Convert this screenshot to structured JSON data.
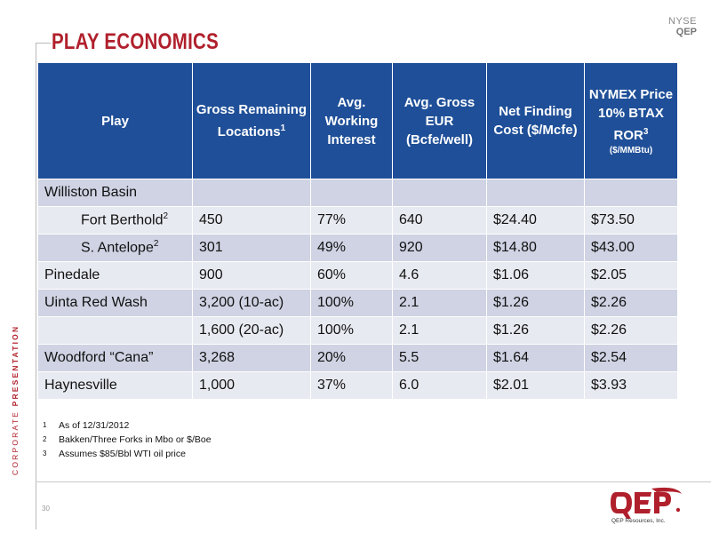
{
  "header": {
    "title": "PLAY ECONOMICS",
    "exchange": "NYSE",
    "ticker": "QEP"
  },
  "side_label": {
    "part1": "CORPORATE ",
    "part2": "PRESENTATION"
  },
  "page_number": "30",
  "table": {
    "columns": [
      {
        "label": "Play"
      },
      {
        "label": "Gross Remaining Locations",
        "sup": "1"
      },
      {
        "label": "Avg. Working Interest"
      },
      {
        "label": "Avg. Gross EUR (Bcfe/well)"
      },
      {
        "label": "Net Finding Cost ($/Mcfe)"
      },
      {
        "label": "NYMEX Price 10% BTAX ROR",
        "sup": "3",
        "sub": "($/MMBtu)"
      }
    ],
    "rows": [
      {
        "play": "Williston Basin",
        "play_sup": "",
        "locations": "",
        "wi": "",
        "eur": "",
        "cost": "",
        "price": ""
      },
      {
        "play": "Fort Berthold",
        "play_sup": "2",
        "locations": "450",
        "wi": "77%",
        "eur": "640",
        "cost": "$24.40",
        "price": "$73.50"
      },
      {
        "play": "S. Antelope",
        "play_sup": "2",
        "locations": "301",
        "wi": "49%",
        "eur": "920",
        "cost": "$14.80",
        "price": "$43.00"
      },
      {
        "play": "Pinedale",
        "play_sup": "",
        "locations": "900",
        "wi": "60%",
        "eur": "4.6",
        "cost": "$1.06",
        "price": "$2.05"
      },
      {
        "play": "Uinta Red Wash",
        "play_sup": "",
        "locations": "3,200 (10-ac)",
        "wi": "100%",
        "eur": "2.1",
        "cost": "$1.26",
        "price": "$2.26"
      },
      {
        "play": "",
        "play_sup": "",
        "locations": "1,600 (20-ac)",
        "wi": "100%",
        "eur": "2.1",
        "cost": "$1.26",
        "price": "$2.26"
      },
      {
        "play": "Woodford “Cana”",
        "play_sup": "",
        "locations": "3,268",
        "wi": "20%",
        "eur": "5.5",
        "cost": "$1.64",
        "price": "$2.54"
      },
      {
        "play": "Haynesville",
        "play_sup": "",
        "locations": "1,000",
        "wi": "37%",
        "eur": "6.0",
        "cost": "$2.01",
        "price": "$3.93"
      }
    ]
  },
  "footnotes": [
    {
      "num": "1",
      "text": "As of 12/31/2012"
    },
    {
      "num": "2",
      "text": "Bakken/Three Forks in Mbo or $/Boe"
    },
    {
      "num": "3",
      "text": "Assumes $85/Bbl WTI oil price"
    }
  ],
  "logo": {
    "caption": "QEP Resources, Inc.",
    "icon": "qep-logo-icon"
  },
  "colors": {
    "accent_red": "#b0202c",
    "header_blue": "#1f4f98",
    "row_dark": "#cfd3e3",
    "row_light": "#e8eaf1"
  }
}
